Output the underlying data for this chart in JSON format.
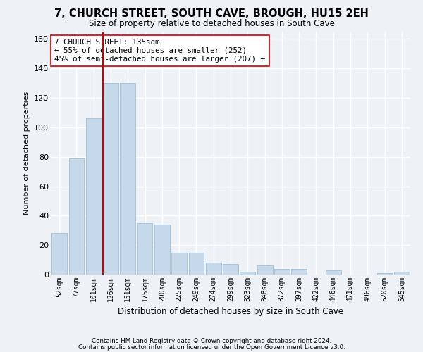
{
  "title": "7, CHURCH STREET, SOUTH CAVE, BROUGH, HU15 2EH",
  "subtitle": "Size of property relative to detached houses in South Cave",
  "xlabel": "Distribution of detached houses by size in South Cave",
  "ylabel": "Number of detached properties",
  "bar_color": "#c6d9ea",
  "bar_edgecolor": "#a8c4d8",
  "categories": [
    "52sqm",
    "77sqm",
    "101sqm",
    "126sqm",
    "151sqm",
    "175sqm",
    "200sqm",
    "225sqm",
    "249sqm",
    "274sqm",
    "299sqm",
    "323sqm",
    "348sqm",
    "372sqm",
    "397sqm",
    "422sqm",
    "446sqm",
    "471sqm",
    "496sqm",
    "520sqm",
    "545sqm"
  ],
  "values": [
    28,
    79,
    106,
    130,
    130,
    35,
    34,
    15,
    15,
    8,
    7,
    2,
    6,
    4,
    4,
    0,
    3,
    0,
    0,
    1,
    2
  ],
  "ylim": [
    0,
    165
  ],
  "yticks": [
    0,
    20,
    40,
    60,
    80,
    100,
    120,
    140,
    160
  ],
  "vline_x": 3.0,
  "vline_color": "#cc0000",
  "annotation_text": "7 CHURCH STREET: 135sqm\n← 55% of detached houses are smaller (252)\n45% of semi-detached houses are larger (207) →",
  "annotation_box_color": "#ffffff",
  "annotation_box_edgecolor": "#cc0000",
  "footer1": "Contains HM Land Registry data © Crown copyright and database right 2024.",
  "footer2": "Contains public sector information licensed under the Open Government Licence v3.0.",
  "background_color": "#eef2f7",
  "grid_color": "#ffffff"
}
